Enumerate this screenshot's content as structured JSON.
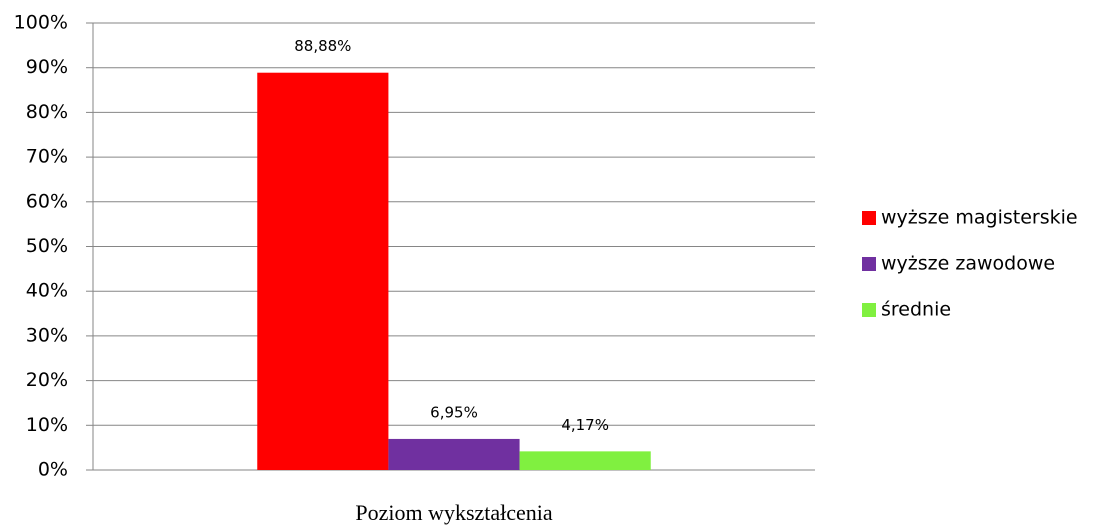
{
  "chart_data": {
    "type": "bar",
    "categories": [
      "Poziom wykształcenia"
    ],
    "series": [
      {
        "name": "wyższe magisterskie",
        "color": "#ff0000",
        "values": [
          88.88
        ],
        "value_labels": [
          "88,88%"
        ]
      },
      {
        "name": "wyższe zawodowe",
        "color": "#7030a0",
        "values": [
          6.95
        ],
        "value_labels": [
          "6,95%"
        ]
      },
      {
        "name": "średnie",
        "color": "#80f040",
        "values": [
          4.17
        ],
        "value_labels": [
          "4,17%"
        ]
      }
    ],
    "ylim": [
      0,
      100
    ],
    "yticks": [
      {
        "value": 0,
        "label": "0%"
      },
      {
        "value": 10,
        "label": "10%"
      },
      {
        "value": 20,
        "label": "20%"
      },
      {
        "value": 30,
        "label": "30%"
      },
      {
        "value": 40,
        "label": "40%"
      },
      {
        "value": 50,
        "label": "50%"
      },
      {
        "value": 60,
        "label": "60%"
      },
      {
        "value": 70,
        "label": "70%"
      },
      {
        "value": 80,
        "label": "80%"
      },
      {
        "value": 90,
        "label": "90%"
      },
      {
        "value": 100,
        "label": "100%"
      }
    ],
    "grid": true,
    "legend": "right"
  }
}
